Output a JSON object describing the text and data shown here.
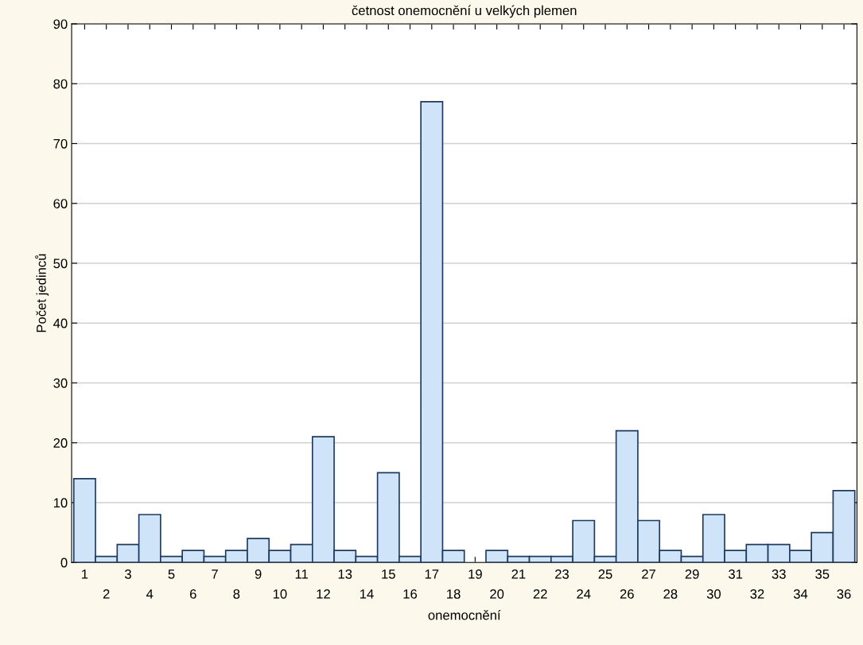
{
  "chart_data": {
    "type": "bar",
    "title": "četnost onemocnění u velkých plemen",
    "xlabel": "onemocnění",
    "ylabel": "Počet jedinců",
    "categories": [
      "1",
      "2",
      "3",
      "4",
      "5",
      "6",
      "7",
      "8",
      "9",
      "10",
      "11",
      "12",
      "13",
      "14",
      "15",
      "16",
      "17",
      "18",
      "19",
      "20",
      "21",
      "22",
      "23",
      "24",
      "25",
      "26",
      "27",
      "28",
      "29",
      "30",
      "31",
      "32",
      "33",
      "34",
      "35",
      "36"
    ],
    "values": [
      14,
      1,
      3,
      8,
      1,
      2,
      1,
      2,
      4,
      2,
      3,
      21,
      2,
      1,
      15,
      1,
      77,
      2,
      0,
      2,
      1,
      1,
      1,
      7,
      1,
      22,
      7,
      2,
      1,
      8,
      2,
      3,
      3,
      2,
      5,
      12
    ],
    "color": "#cfe4f8",
    "ylim": [
      0,
      90
    ],
    "yticks": [
      0,
      10,
      20,
      30,
      40,
      50,
      60,
      70,
      80,
      90
    ],
    "grid": "y"
  }
}
